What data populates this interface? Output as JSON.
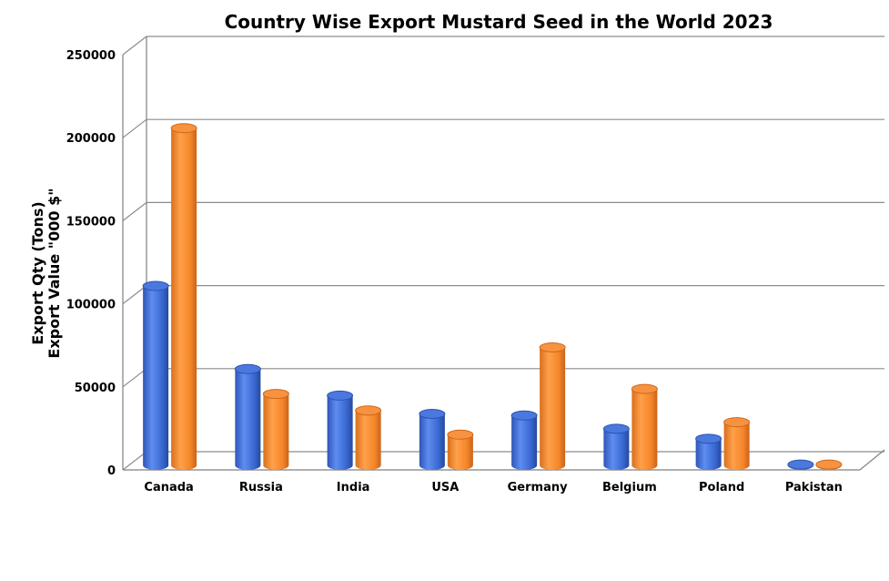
{
  "chart_data": {
    "type": "bar",
    "title": "Country Wise Export Mustard Seed in the World 2023",
    "ylabel_lines": [
      "Export Qty (Tons)",
      "Export Value \"000 $\""
    ],
    "xlabel": "",
    "ylim": [
      0,
      250000
    ],
    "yticks": [
      "0",
      "50000",
      "100000",
      "150000",
      "200000",
      "250000"
    ],
    "categories": [
      "Canada",
      "Russia",
      "India",
      "USA",
      "Germany",
      "Belgium",
      "Poland",
      "Pakistan"
    ],
    "series": [
      {
        "values": [
          108000,
          58000,
          42000,
          31000,
          30000,
          22000,
          16000,
          500
        ],
        "color": "#3f6fd8"
      },
      {
        "values": [
          203000,
          43000,
          33000,
          18500,
          71000,
          46000,
          26000,
          500
        ],
        "color": "#f58a2e"
      }
    ],
    "grid": true,
    "legend": "none",
    "style": "3d-cylinder"
  }
}
